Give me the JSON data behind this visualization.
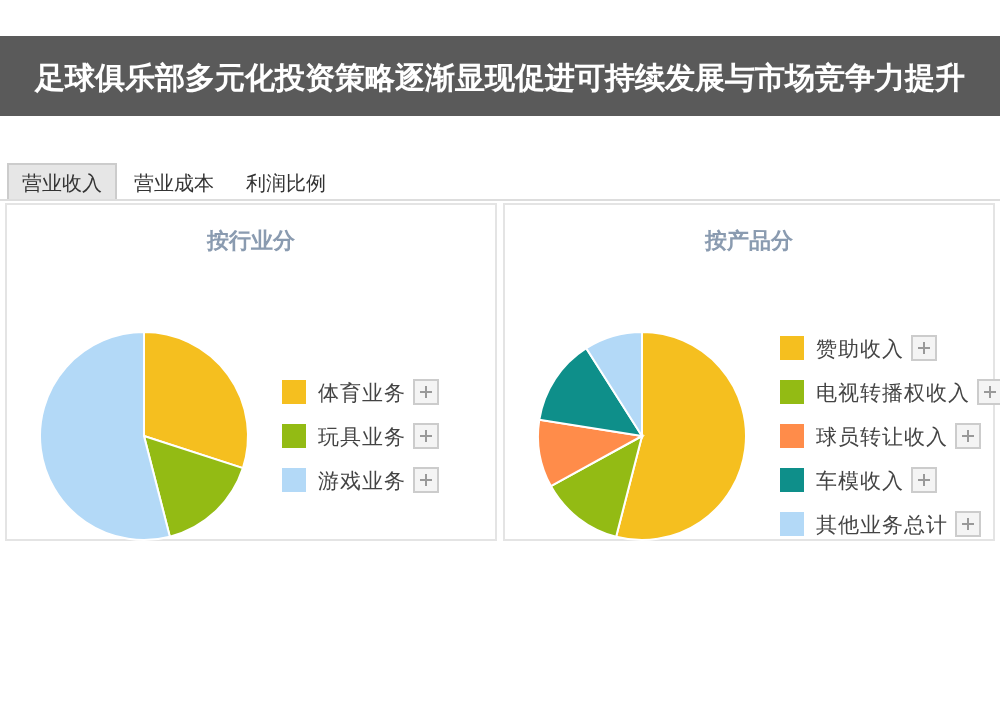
{
  "chart_data": [
    {
      "type": "pie",
      "title": "按行业分",
      "categories": [
        "体育业务",
        "玩具业务",
        "游戏业务"
      ],
      "values": [
        30,
        16,
        54
      ],
      "colors": [
        "#f5bf1f",
        "#93bb14",
        "#b3d9f7"
      ],
      "legend": "right",
      "annotations": [
        "足球俱乐部多元化投资策略逐渐显现促进可持续发展与市场竞争力提升",
        "营业收入",
        "营业成本",
        "利润比例"
      ]
    },
    {
      "type": "pie",
      "title": "按产品分",
      "categories": [
        "赞助收入",
        "电视转播权收入",
        "球员转让收入",
        "车模收入",
        "其他业务总计"
      ],
      "values": [
        54,
        13,
        10.5,
        13.5,
        9
      ],
      "colors": [
        "#f5bf1f",
        "#93bb14",
        "#ff8c4a",
        "#0e8f8a",
        "#b3d9f7"
      ],
      "legend": "right"
    }
  ]
}
